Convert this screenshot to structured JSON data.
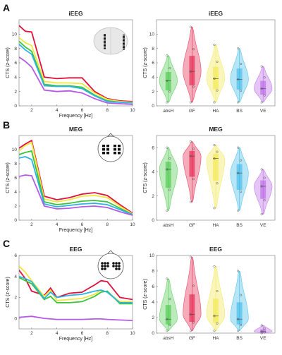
{
  "figure": {
    "colors": {
      "absH": "#3cc33c",
      "GF": "#e0103c",
      "HA": "#f0e63c",
      "BS": "#2db4e6",
      "VE": "#b45ae6"
    },
    "panels": [
      {
        "letter": "A"
      },
      {
        "letter": "B"
      },
      {
        "letter": "C"
      }
    ],
    "glyph_icons": [
      "brain-top-view-icon",
      "head-meg-sensors-icon",
      "head-eeg-electrodes-icon"
    ]
  },
  "chart_data": [
    {
      "type": "line",
      "title": "iEEG",
      "xlabel": "Frequency [Hz]",
      "ylabel": "CTS (z-score)",
      "xlim": [
        1,
        10
      ],
      "ylim": [
        0,
        12
      ],
      "xticks": [
        "2",
        "4",
        "6",
        "8",
        "10"
      ],
      "yticks": [
        "0",
        "2",
        "4",
        "6",
        "8",
        "10"
      ],
      "x": [
        1,
        1.5,
        2,
        3,
        4,
        5,
        6,
        7,
        8,
        9,
        10
      ],
      "series": [
        {
          "color": "#e0103c",
          "values": [
            11.2,
            10.4,
            10.3,
            4.0,
            3.8,
            3.9,
            3.9,
            2.0,
            1.0,
            0.7,
            0.6
          ]
        },
        {
          "color": "#f0e63c",
          "values": [
            9.5,
            8.8,
            8.4,
            3.4,
            3.2,
            3.2,
            3.1,
            1.8,
            0.9,
            0.6,
            0.5
          ]
        },
        {
          "color": "#3cc33c",
          "values": [
            9.0,
            8.2,
            7.6,
            3.0,
            2.8,
            2.8,
            2.6,
            1.5,
            0.7,
            0.5,
            0.4
          ]
        },
        {
          "color": "#2db4e6",
          "values": [
            8.6,
            7.8,
            7.2,
            2.8,
            2.7,
            2.7,
            2.4,
            1.4,
            0.6,
            0.5,
            0.4
          ]
        },
        {
          "color": "#b45ae6",
          "values": [
            6.8,
            6.2,
            5.4,
            2.2,
            2.0,
            2.1,
            1.8,
            1.0,
            0.4,
            0.3,
            0.2
          ]
        }
      ]
    },
    {
      "type": "violin",
      "title": "iEEG",
      "ylabel": "CTS (z-score)",
      "ylim": [
        0,
        12
      ],
      "yticks": [
        "0",
        "2",
        "4",
        "6",
        "8",
        "10"
      ],
      "categories": [
        "absH",
        "GF",
        "HA",
        "BS",
        "VE"
      ],
      "medians": [
        3.5,
        4.8,
        3.8,
        3.7,
        2.4
      ],
      "ranges": [
        [
          0.5,
          7.0
        ],
        [
          0.5,
          11.0
        ],
        [
          0.5,
          8.5
        ],
        [
          0.5,
          8.0
        ],
        [
          0.5,
          5.5
        ]
      ]
    },
    {
      "type": "line",
      "title": "MEG",
      "xlabel": "Frequency [Hz]",
      "ylabel": "CTS (z-score)",
      "xlim": [
        1,
        10
      ],
      "ylim": [
        0,
        12
      ],
      "xticks": [
        "2",
        "4",
        "6",
        "8",
        "10"
      ],
      "yticks": [
        "0",
        "2",
        "4",
        "6",
        "8",
        "10"
      ],
      "x": [
        1,
        1.5,
        2,
        3,
        4,
        5,
        6,
        7,
        8,
        9,
        10
      ],
      "series": [
        {
          "color": "#e0103c",
          "values": [
            10.2,
            10.8,
            11.3,
            3.4,
            2.9,
            3.2,
            3.7,
            3.9,
            3.5,
            2.2,
            1.0
          ]
        },
        {
          "color": "#f0e63c",
          "values": [
            9.8,
            10.6,
            11.0,
            3.0,
            2.6,
            2.9,
            3.4,
            3.5,
            3.2,
            2.0,
            0.9
          ]
        },
        {
          "color": "#3cc33c",
          "values": [
            9.3,
            9.6,
            9.8,
            2.6,
            2.2,
            2.4,
            2.7,
            2.8,
            2.6,
            1.7,
            0.8
          ]
        },
        {
          "color": "#2db4e6",
          "values": [
            8.8,
            9.0,
            8.6,
            2.3,
            1.9,
            2.1,
            2.3,
            2.4,
            2.2,
            1.5,
            0.8
          ]
        },
        {
          "color": "#b45ae6",
          "values": [
            6.2,
            6.4,
            6.3,
            2.0,
            1.6,
            1.7,
            1.9,
            2.0,
            1.8,
            1.2,
            0.7
          ]
        }
      ]
    },
    {
      "type": "violin",
      "title": "MEG",
      "ylabel": "CTS (z-score)",
      "ylim": [
        0,
        7
      ],
      "yticks": [
        "0",
        "2",
        "4",
        "6"
      ],
      "categories": [
        "absH",
        "GF",
        "HA",
        "BS",
        "VE"
      ],
      "medians": [
        4.2,
        5.3,
        5.1,
        3.9,
        2.8
      ],
      "ranges": [
        [
          0.8,
          6.0
        ],
        [
          1.5,
          6.5
        ],
        [
          1.0,
          6.2
        ],
        [
          0.8,
          6.0
        ],
        [
          0.5,
          4.2
        ]
      ]
    },
    {
      "type": "line",
      "title": "EEG",
      "xlabel": "Frequency [Hz]",
      "ylabel": "CTS (z-score)",
      "xlim": [
        1,
        10
      ],
      "ylim": [
        -1,
        6
      ],
      "xticks": [
        "2",
        "4",
        "6",
        "8",
        "10"
      ],
      "yticks": [
        "0",
        "2",
        "4",
        "6"
      ],
      "x": [
        1,
        1.5,
        2,
        3,
        3.5,
        4,
        5,
        6,
        7,
        7.5,
        8,
        9,
        10
      ],
      "series": [
        {
          "color": "#e0103c",
          "values": [
            4.6,
            3.8,
            2.6,
            2.2,
            2.9,
            2.0,
            2.4,
            2.5,
            3.2,
            3.6,
            3.5,
            2.0,
            1.8
          ]
        },
        {
          "color": "#f0e63c",
          "values": [
            5.0,
            4.4,
            3.6,
            2.1,
            2.7,
            1.7,
            1.8,
            1.9,
            2.3,
            2.7,
            2.5,
            1.6,
            1.6
          ]
        },
        {
          "color": "#3cc33c",
          "values": [
            3.9,
            3.6,
            3.3,
            1.8,
            2.1,
            1.5,
            1.5,
            1.6,
            2.1,
            2.5,
            2.6,
            1.4,
            1.4
          ]
        },
        {
          "color": "#2db4e6",
          "values": [
            4.0,
            3.8,
            3.5,
            1.9,
            2.5,
            2.0,
            2.2,
            2.3,
            2.6,
            2.7,
            2.5,
            1.5,
            1.5
          ]
        },
        {
          "color": "#b45ae6",
          "values": [
            0.1,
            0.15,
            0.2,
            0.0,
            -0.05,
            -0.1,
            -0.1,
            -0.1,
            -0.05,
            -0.05,
            -0.1,
            -0.15,
            -0.2
          ]
        }
      ]
    },
    {
      "type": "violin",
      "title": "EEG",
      "ylabel": "CTS (z-score)",
      "ylim": [
        0,
        10
      ],
      "yticks": [
        "0",
        "2",
        "4",
        "6",
        "8",
        "10"
      ],
      "categories": [
        "absH",
        "GF",
        "HA",
        "BS",
        "VE"
      ],
      "medians": [
        1.8,
        2.4,
        2.2,
        1.8,
        0.2
      ],
      "ranges": [
        [
          0.3,
          7.0
        ],
        [
          0.3,
          9.8
        ],
        [
          0.3,
          8.6
        ],
        [
          0.3,
          8.0
        ],
        [
          0.0,
          1.0
        ]
      ]
    }
  ]
}
